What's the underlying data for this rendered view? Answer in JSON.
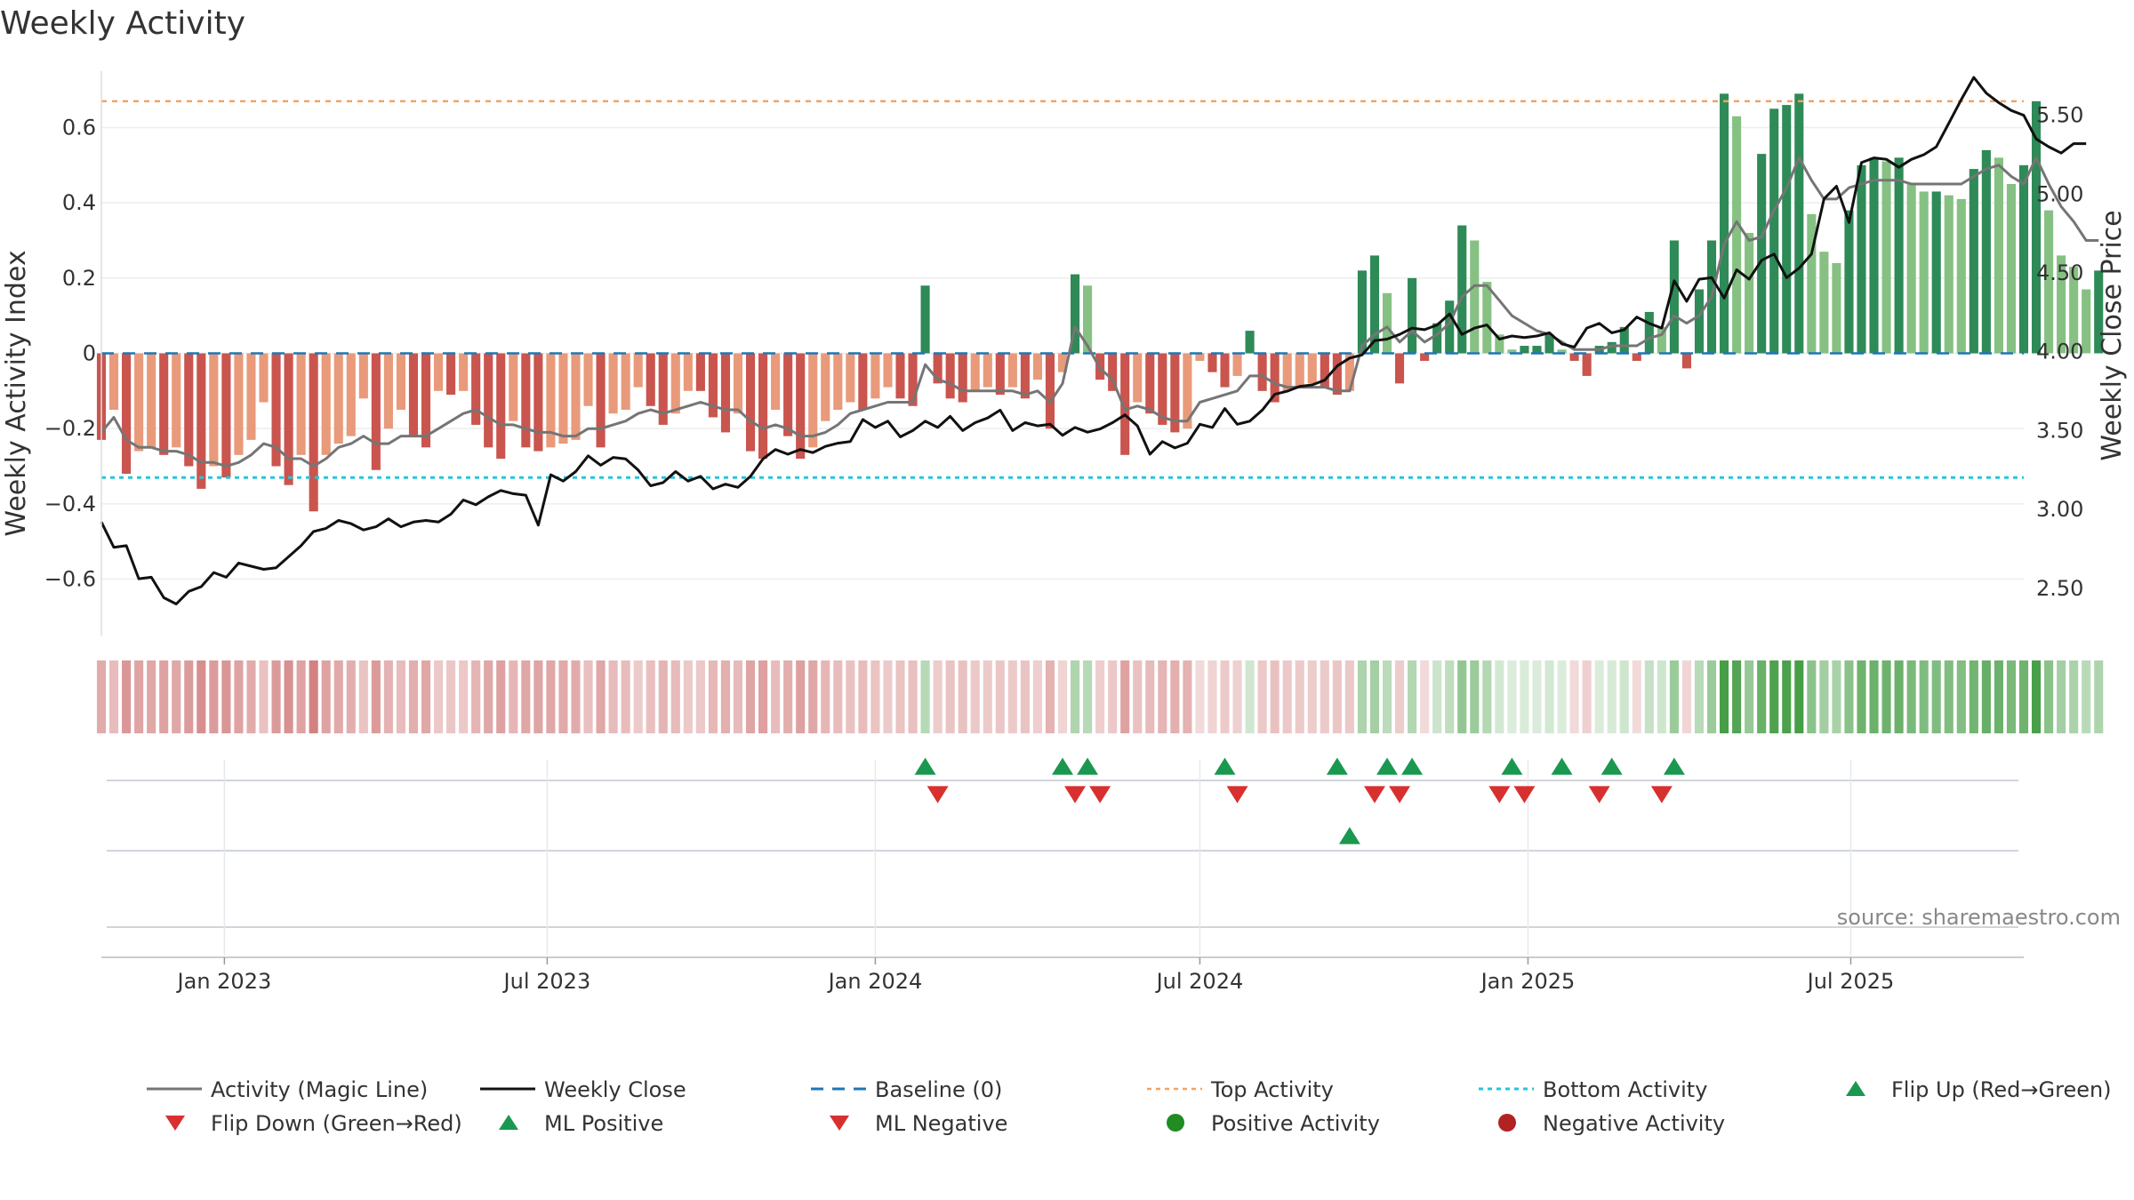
{
  "chart_data": {
    "type": "bar",
    "title": "Weekly Activity",
    "ylabel_left": "Weekly Activity Index",
    "ylabel_right": "Weekly Close Price",
    "ylim_left": [
      -0.75,
      0.75
    ],
    "ylim_right": [
      2.2,
      5.78
    ],
    "yticks_left": [
      0.6,
      0.4,
      0.2,
      0,
      -0.2,
      -0.4,
      -0.6
    ],
    "yticks_left_labels": [
      "0.6",
      "0.4",
      "0.2",
      "0",
      "−0.2",
      "−0.4",
      "−0.6"
    ],
    "yticks_right": [
      5.5,
      5.0,
      4.5,
      4.0,
      3.5,
      3.0,
      2.5
    ],
    "yticks_right_labels": [
      "5.50",
      "5.00",
      "4.50",
      "4.00",
      "3.50",
      "3.00",
      "2.50"
    ],
    "x_start": "2022-10-24",
    "x_end": "2025-10-06",
    "xticks": [
      {
        "date": "2023-01-01",
        "label": "Jan 2023"
      },
      {
        "date": "2023-07-01",
        "label": "Jul 2023"
      },
      {
        "date": "2024-01-01",
        "label": "Jan 2024"
      },
      {
        "date": "2024-07-01",
        "label": "Jul 2024"
      },
      {
        "date": "2025-01-01",
        "label": "Jan 2025"
      },
      {
        "date": "2025-07-01",
        "label": "Jul 2025"
      }
    ],
    "first_week": "2022-10-24",
    "activity": [
      -0.23,
      -0.15,
      -0.32,
      -0.26,
      -0.25,
      -0.27,
      -0.25,
      -0.3,
      -0.36,
      -0.3,
      -0.33,
      -0.27,
      -0.23,
      -0.13,
      -0.3,
      -0.35,
      -0.27,
      -0.42,
      -0.27,
      -0.24,
      -0.22,
      -0.12,
      -0.31,
      -0.2,
      -0.15,
      -0.22,
      -0.25,
      -0.1,
      -0.11,
      -0.1,
      -0.19,
      -0.25,
      -0.28,
      -0.18,
      -0.25,
      -0.26,
      -0.25,
      -0.24,
      -0.23,
      -0.14,
      -0.25,
      -0.16,
      -0.15,
      -0.09,
      -0.14,
      -0.19,
      -0.16,
      -0.1,
      -0.1,
      -0.17,
      -0.21,
      -0.16,
      -0.26,
      -0.28,
      -0.15,
      -0.22,
      -0.28,
      -0.25,
      -0.18,
      -0.15,
      -0.13,
      -0.15,
      -0.12,
      -0.09,
      -0.12,
      -0.14,
      0.18,
      -0.08,
      -0.12,
      -0.13,
      -0.1,
      -0.09,
      -0.11,
      -0.09,
      -0.12,
      -0.07,
      -0.2,
      -0.05,
      0.21,
      0.18,
      -0.07,
      -0.1,
      -0.27,
      -0.13,
      -0.16,
      -0.19,
      -0.21,
      -0.2,
      -0.02,
      -0.05,
      -0.09,
      -0.06,
      0.06,
      -0.1,
      -0.13,
      -0.1,
      -0.09,
      -0.08,
      -0.09,
      -0.11,
      -0.1,
      0.22,
      0.26,
      0.16,
      -0.08,
      0.2,
      -0.02,
      0.08,
      0.14,
      0.34,
      0.3,
      0.19,
      0.05,
      0.01,
      0.02,
      0.02,
      0.05,
      0.01,
      -0.02,
      -0.06,
      0.02,
      0.03,
      0.07,
      -0.02,
      0.11,
      0.07,
      0.3,
      -0.04,
      0.17,
      0.3,
      0.69,
      0.63,
      0.32,
      0.53,
      0.65,
      0.66,
      0.69,
      0.37,
      0.27,
      0.24,
      0.38,
      0.5,
      0.52,
      0.51,
      0.52,
      0.45,
      0.43,
      0.43,
      0.42,
      0.41,
      0.49,
      0.54,
      0.52,
      0.45,
      0.5,
      0.67,
      0.38,
      0.26,
      0.23,
      0.17,
      0.22
    ],
    "magic_line": [
      -0.21,
      -0.17,
      -0.23,
      -0.25,
      -0.25,
      -0.26,
      -0.26,
      -0.27,
      -0.29,
      -0.29,
      -0.3,
      -0.29,
      -0.27,
      -0.24,
      -0.25,
      -0.28,
      -0.28,
      -0.3,
      -0.28,
      -0.25,
      -0.24,
      -0.22,
      -0.24,
      -0.24,
      -0.22,
      -0.22,
      -0.22,
      -0.2,
      -0.18,
      -0.16,
      -0.15,
      -0.17,
      -0.19,
      -0.19,
      -0.2,
      -0.21,
      -0.21,
      -0.22,
      -0.22,
      -0.2,
      -0.2,
      -0.19,
      -0.18,
      -0.16,
      -0.15,
      -0.16,
      -0.15,
      -0.14,
      -0.13,
      -0.14,
      -0.15,
      -0.15,
      -0.18,
      -0.2,
      -0.19,
      -0.2,
      -0.22,
      -0.22,
      -0.21,
      -0.19,
      -0.16,
      -0.15,
      -0.14,
      -0.13,
      -0.13,
      -0.13,
      -0.03,
      -0.07,
      -0.08,
      -0.1,
      -0.1,
      -0.1,
      -0.1,
      -0.1,
      -0.11,
      -0.1,
      -0.13,
      -0.08,
      0.07,
      0.02,
      -0.04,
      -0.07,
      -0.15,
      -0.14,
      -0.15,
      -0.17,
      -0.18,
      -0.18,
      -0.13,
      -0.12,
      -0.11,
      -0.1,
      -0.06,
      -0.06,
      -0.08,
      -0.09,
      -0.09,
      -0.09,
      -0.09,
      -0.1,
      -0.1,
      0.02,
      0.05,
      0.07,
      0.03,
      0.06,
      0.03,
      0.05,
      0.08,
      0.15,
      0.18,
      0.18,
      0.14,
      0.1,
      0.08,
      0.06,
      0.05,
      0.03,
      0.01,
      0.01,
      0.01,
      0.02,
      0.02,
      0.02,
      0.04,
      0.05,
      0.1,
      0.08,
      0.1,
      0.15,
      0.29,
      0.35,
      0.3,
      0.31,
      0.38,
      0.44,
      0.52,
      0.46,
      0.41,
      0.41,
      0.44,
      0.45,
      0.46,
      0.46,
      0.46,
      0.45,
      0.45,
      0.45,
      0.45,
      0.45,
      0.47,
      0.49,
      0.5,
      0.47,
      0.45,
      0.52,
      0.45,
      0.39,
      0.35,
      0.3,
      0.3
    ],
    "weekly_close": [
      2.92,
      2.76,
      2.77,
      2.56,
      2.57,
      2.44,
      2.4,
      2.48,
      2.51,
      2.6,
      2.57,
      2.66,
      2.64,
      2.62,
      2.63,
      2.7,
      2.77,
      2.86,
      2.88,
      2.93,
      2.91,
      2.87,
      2.89,
      2.94,
      2.89,
      2.92,
      2.93,
      2.92,
      2.97,
      3.06,
      3.03,
      3.08,
      3.12,
      3.1,
      3.09,
      2.9,
      3.22,
      3.18,
      3.24,
      3.34,
      3.28,
      3.33,
      3.32,
      3.25,
      3.15,
      3.17,
      3.24,
      3.18,
      3.21,
      3.13,
      3.16,
      3.14,
      3.21,
      3.32,
      3.38,
      3.35,
      3.38,
      3.36,
      3.4,
      3.42,
      3.43,
      3.57,
      3.52,
      3.56,
      3.46,
      3.5,
      3.56,
      3.52,
      3.59,
      3.5,
      3.55,
      3.58,
      3.63,
      3.5,
      3.55,
      3.53,
      3.54,
      3.47,
      3.52,
      3.49,
      3.51,
      3.55,
      3.6,
      3.53,
      3.35,
      3.43,
      3.39,
      3.42,
      3.54,
      3.52,
      3.64,
      3.54,
      3.56,
      3.63,
      3.73,
      3.75,
      3.78,
      3.79,
      3.82,
      3.91,
      3.96,
      3.98,
      4.07,
      4.08,
      4.11,
      4.15,
      4.14,
      4.17,
      4.24,
      4.11,
      4.15,
      4.17,
      4.08,
      4.1,
      4.09,
      4.1,
      4.12,
      4.05,
      4.03,
      4.15,
      4.18,
      4.12,
      4.14,
      4.22,
      4.18,
      4.15,
      4.45,
      4.32,
      4.46,
      4.47,
      4.34,
      4.52,
      4.46,
      4.58,
      4.62,
      4.47,
      4.53,
      4.62,
      4.97,
      5.05,
      4.82,
      5.2,
      5.23,
      5.22,
      5.17,
      5.22,
      5.25,
      5.3,
      5.45,
      5.6,
      5.74,
      5.64,
      5.58,
      5.53,
      5.5,
      5.35,
      5.3,
      5.26,
      5.32,
      5.32
    ],
    "top_activity": 0.67,
    "bottom_activity": -0.33,
    "baseline": 0,
    "flip_up": [
      66,
      77,
      79,
      90,
      99,
      103,
      105,
      113,
      117,
      121,
      126
    ],
    "flip_down": [
      67,
      78,
      80,
      91,
      102,
      104,
      112,
      114,
      120,
      125
    ],
    "ml_positive": [
      100
    ],
    "ml_negative": [],
    "positive_activity": [],
    "negative_activity": [],
    "source": "source: sharemaestro.com",
    "legend": [
      {
        "key": "magic",
        "label": "Activity (Magic Line)"
      },
      {
        "key": "close",
        "label": "Weekly Close"
      },
      {
        "key": "baseline",
        "label": "Baseline (0)"
      },
      {
        "key": "top",
        "label": "Top Activity"
      },
      {
        "key": "bottom",
        "label": "Bottom Activity"
      },
      {
        "key": "flipup",
        "label": "Flip Up (Red→Green)"
      },
      {
        "key": "flipdown",
        "label": "Flip Down (Green→Red)"
      },
      {
        "key": "mlpos",
        "label": "ML Positive"
      },
      {
        "key": "mlneg",
        "label": "ML Negative"
      },
      {
        "key": "posact",
        "label": "Positive Activity"
      },
      {
        "key": "negact",
        "label": "Negative Activity"
      }
    ]
  },
  "colors": {
    "pos_strong": "#2e8a57",
    "pos_light": "#86c183",
    "neg_strong": "#c9554e",
    "neg_light": "#e89a7b",
    "magic_line": "#757575",
    "close_line": "#111111",
    "baseline": "#1f77b4",
    "top": "#f4a261",
    "bottom": "#26c6da",
    "flip_up": "#1a9850",
    "flip_down": "#d7302f",
    "ml_pos": "#1a9850",
    "ml_neg": "#d7302f",
    "pos_dot": "#228b22",
    "neg_dot": "#b22222"
  }
}
